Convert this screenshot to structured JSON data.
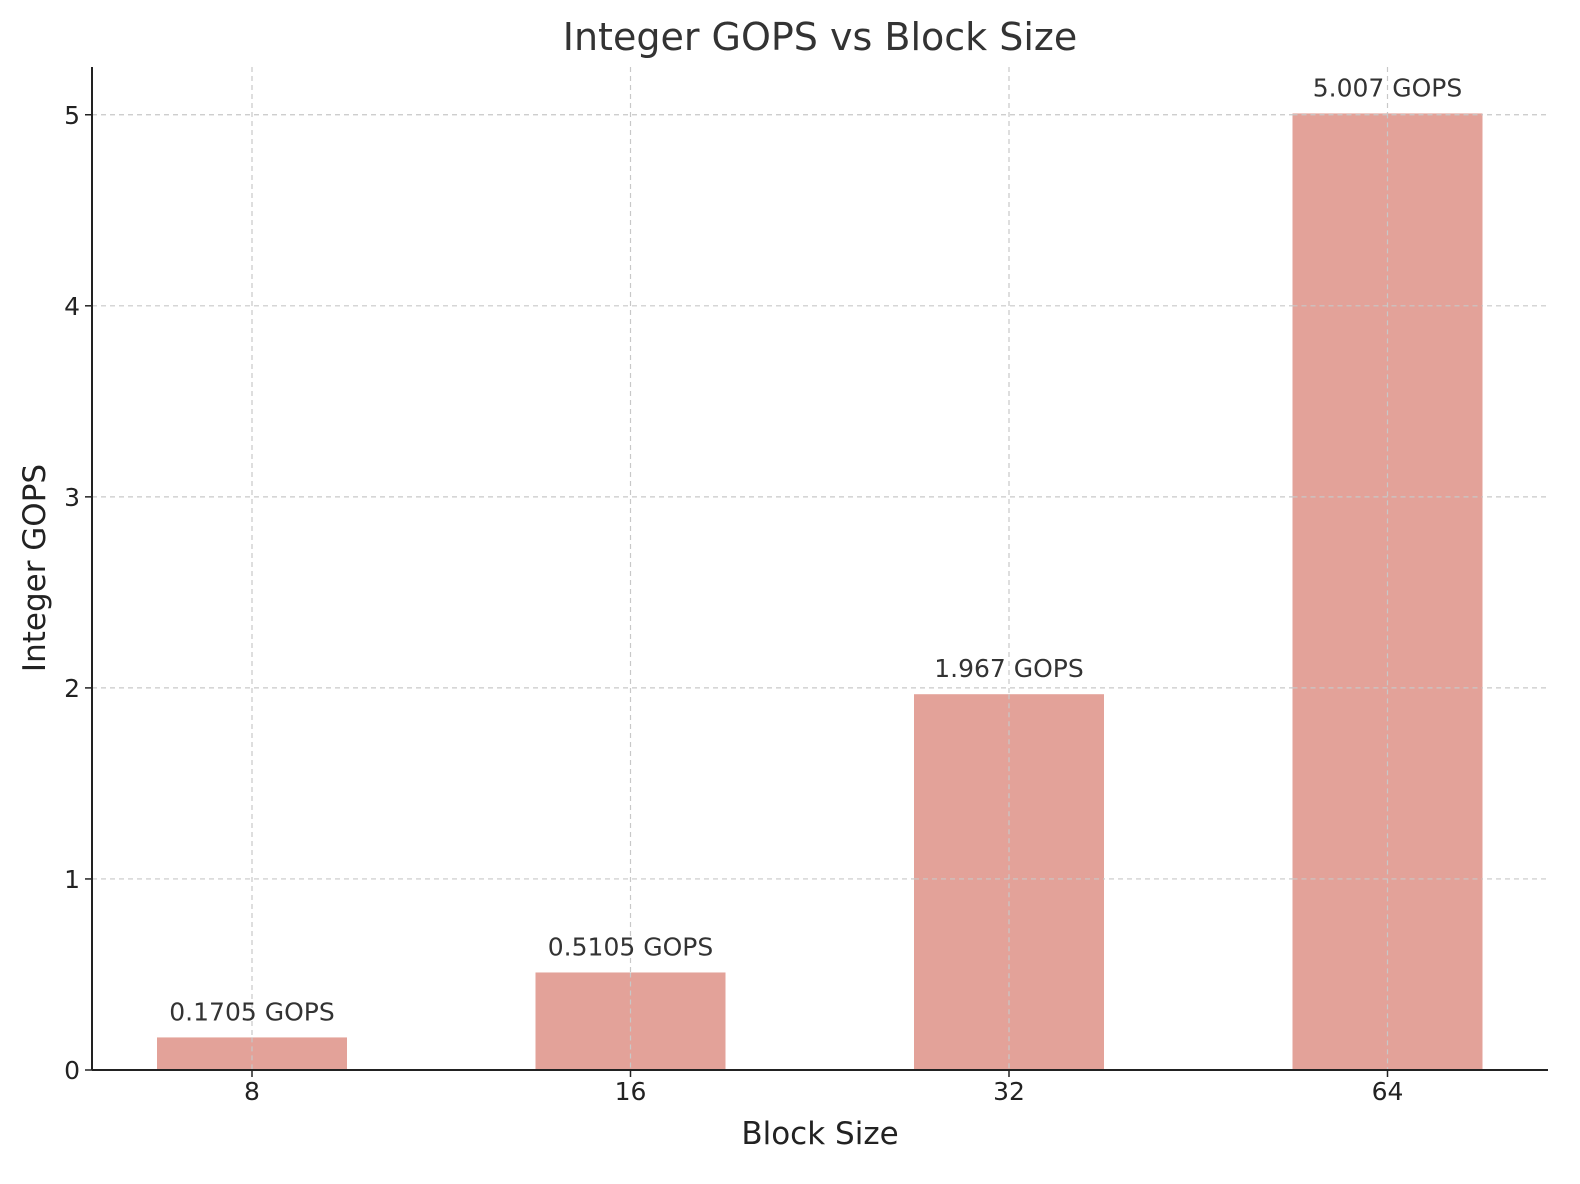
{
  "chart_data": {
    "type": "bar",
    "title": "Integer GOPS vs Block Size",
    "xlabel": "Block Size",
    "ylabel": "Integer GOPS",
    "categories": [
      "8",
      "16",
      "32",
      "64"
    ],
    "values": [
      0.1705,
      0.5105,
      1.967,
      5.007
    ],
    "data_labels": [
      "0.1705 GOPS",
      "0.5105 GOPS",
      "1.967 GOPS",
      "5.007 GOPS"
    ],
    "ylim": [
      0,
      5.25
    ],
    "yticks": [
      0,
      1,
      2,
      3,
      4,
      5
    ],
    "ytick_labels": [
      "0",
      "1",
      "2",
      "3",
      "4",
      "5"
    ],
    "grid": true,
    "legend": "none",
    "bar_color": "#e3a299"
  }
}
